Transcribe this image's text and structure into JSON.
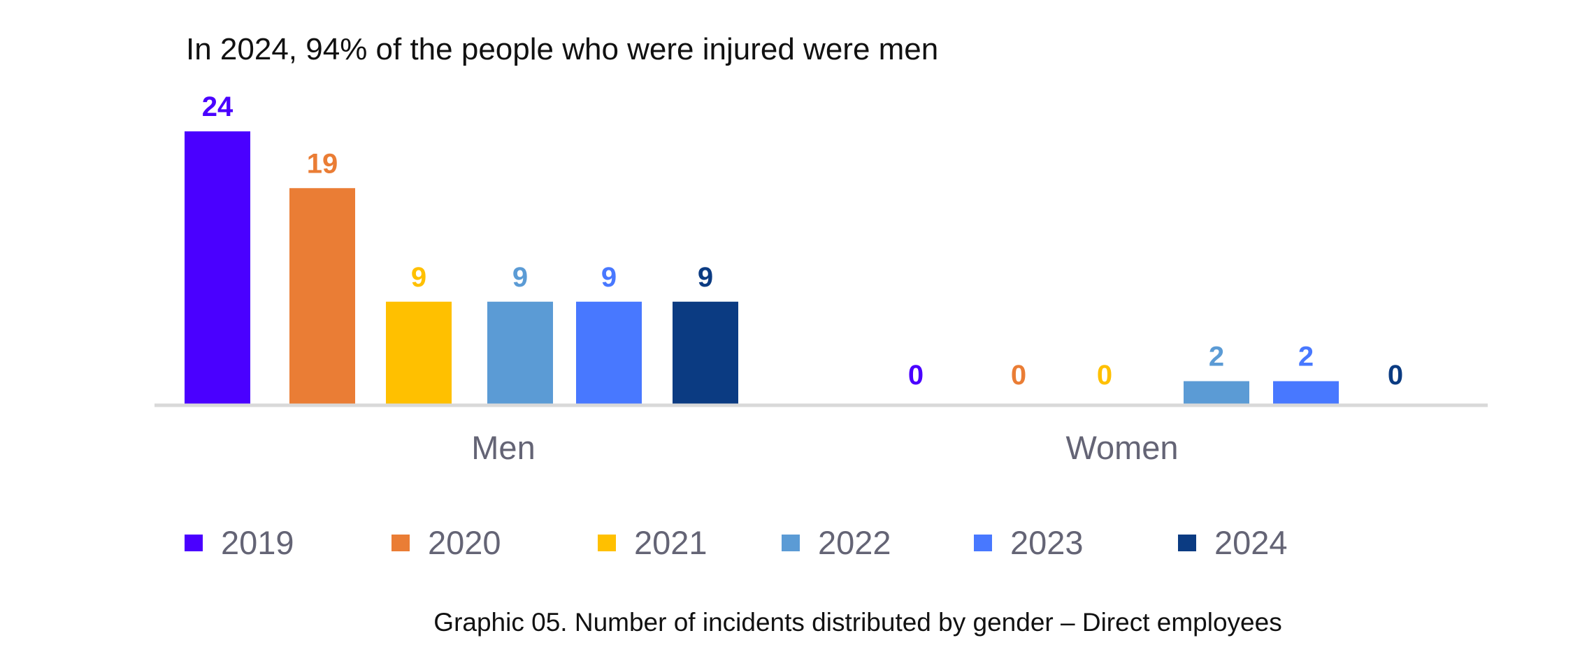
{
  "chart_data": {
    "type": "bar",
    "title": "In 2024, 94% of the people who were injured were men",
    "caption": "Graphic 05. Number of incidents distributed by gender – Direct employees",
    "xlabel": "",
    "ylabel": "",
    "categories": [
      "Men",
      "Women"
    ],
    "series": [
      {
        "name": "2019",
        "color": "#4A00FF",
        "values": [
          24,
          0
        ]
      },
      {
        "name": "2020",
        "color": "#EA7D35",
        "values": [
          19,
          0
        ]
      },
      {
        "name": "2021",
        "color": "#FFC000",
        "values": [
          9,
          0
        ]
      },
      {
        "name": "2022",
        "color": "#5B9BD5",
        "values": [
          9,
          2
        ]
      },
      {
        "name": "2023",
        "color": "#4878FF",
        "values": [
          9,
          2
        ]
      },
      {
        "name": "2024",
        "color": "#0B3B82",
        "values": [
          9,
          0
        ]
      }
    ],
    "ylim": [
      0,
      24
    ],
    "grid": false,
    "data_labels": true,
    "legend_position": "bottom",
    "axis_color": "#D9D9D9",
    "category_label_color": "#646475"
  }
}
